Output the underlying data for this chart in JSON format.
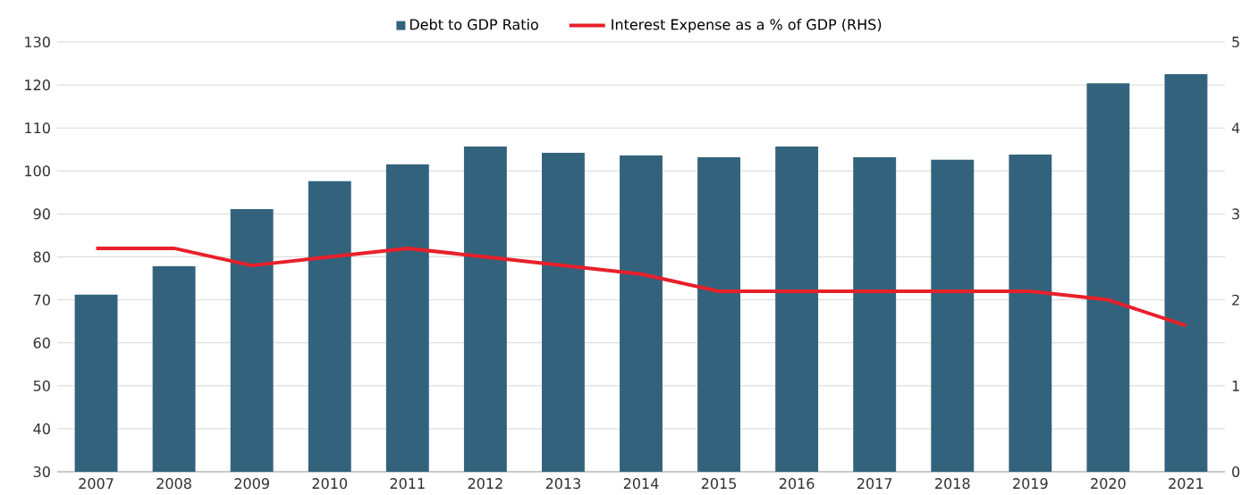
{
  "chart_data": {
    "type": "bar",
    "categories": [
      "2007",
      "2008",
      "2009",
      "2010",
      "2011",
      "2012",
      "2013",
      "2014",
      "2015",
      "2016",
      "2017",
      "2018",
      "2019",
      "2020",
      "2021"
    ],
    "series": [
      {
        "name": "Debt to GDP Ratio",
        "color": "#33637c",
        "values": [
          71.2,
          77.8,
          91.1,
          97.6,
          101.5,
          105.7,
          104.2,
          103.6,
          103.2,
          105.7,
          103.2,
          102.6,
          103.8,
          120.4,
          122.5
        ]
      },
      {
        "name": "Interest Expense as a % of GDP (RHS)",
        "type": "line",
        "axis": "y2",
        "color": "#e8202a",
        "values": [
          2.6,
          2.6,
          2.4,
          2.5,
          2.6,
          2.5,
          2.4,
          2.3,
          2.1,
          2.1,
          2.1,
          2.1,
          2.1,
          2.0,
          1.7
        ]
      }
    ],
    "ylim": [
      30,
      130
    ],
    "yticks": [
      30,
      40,
      50,
      60,
      70,
      80,
      90,
      100,
      110,
      120,
      130
    ],
    "y2lim": [
      0,
      5
    ],
    "y2ticks": [
      0,
      1,
      2,
      3,
      4,
      5
    ],
    "grid": "y",
    "legend": "top"
  }
}
